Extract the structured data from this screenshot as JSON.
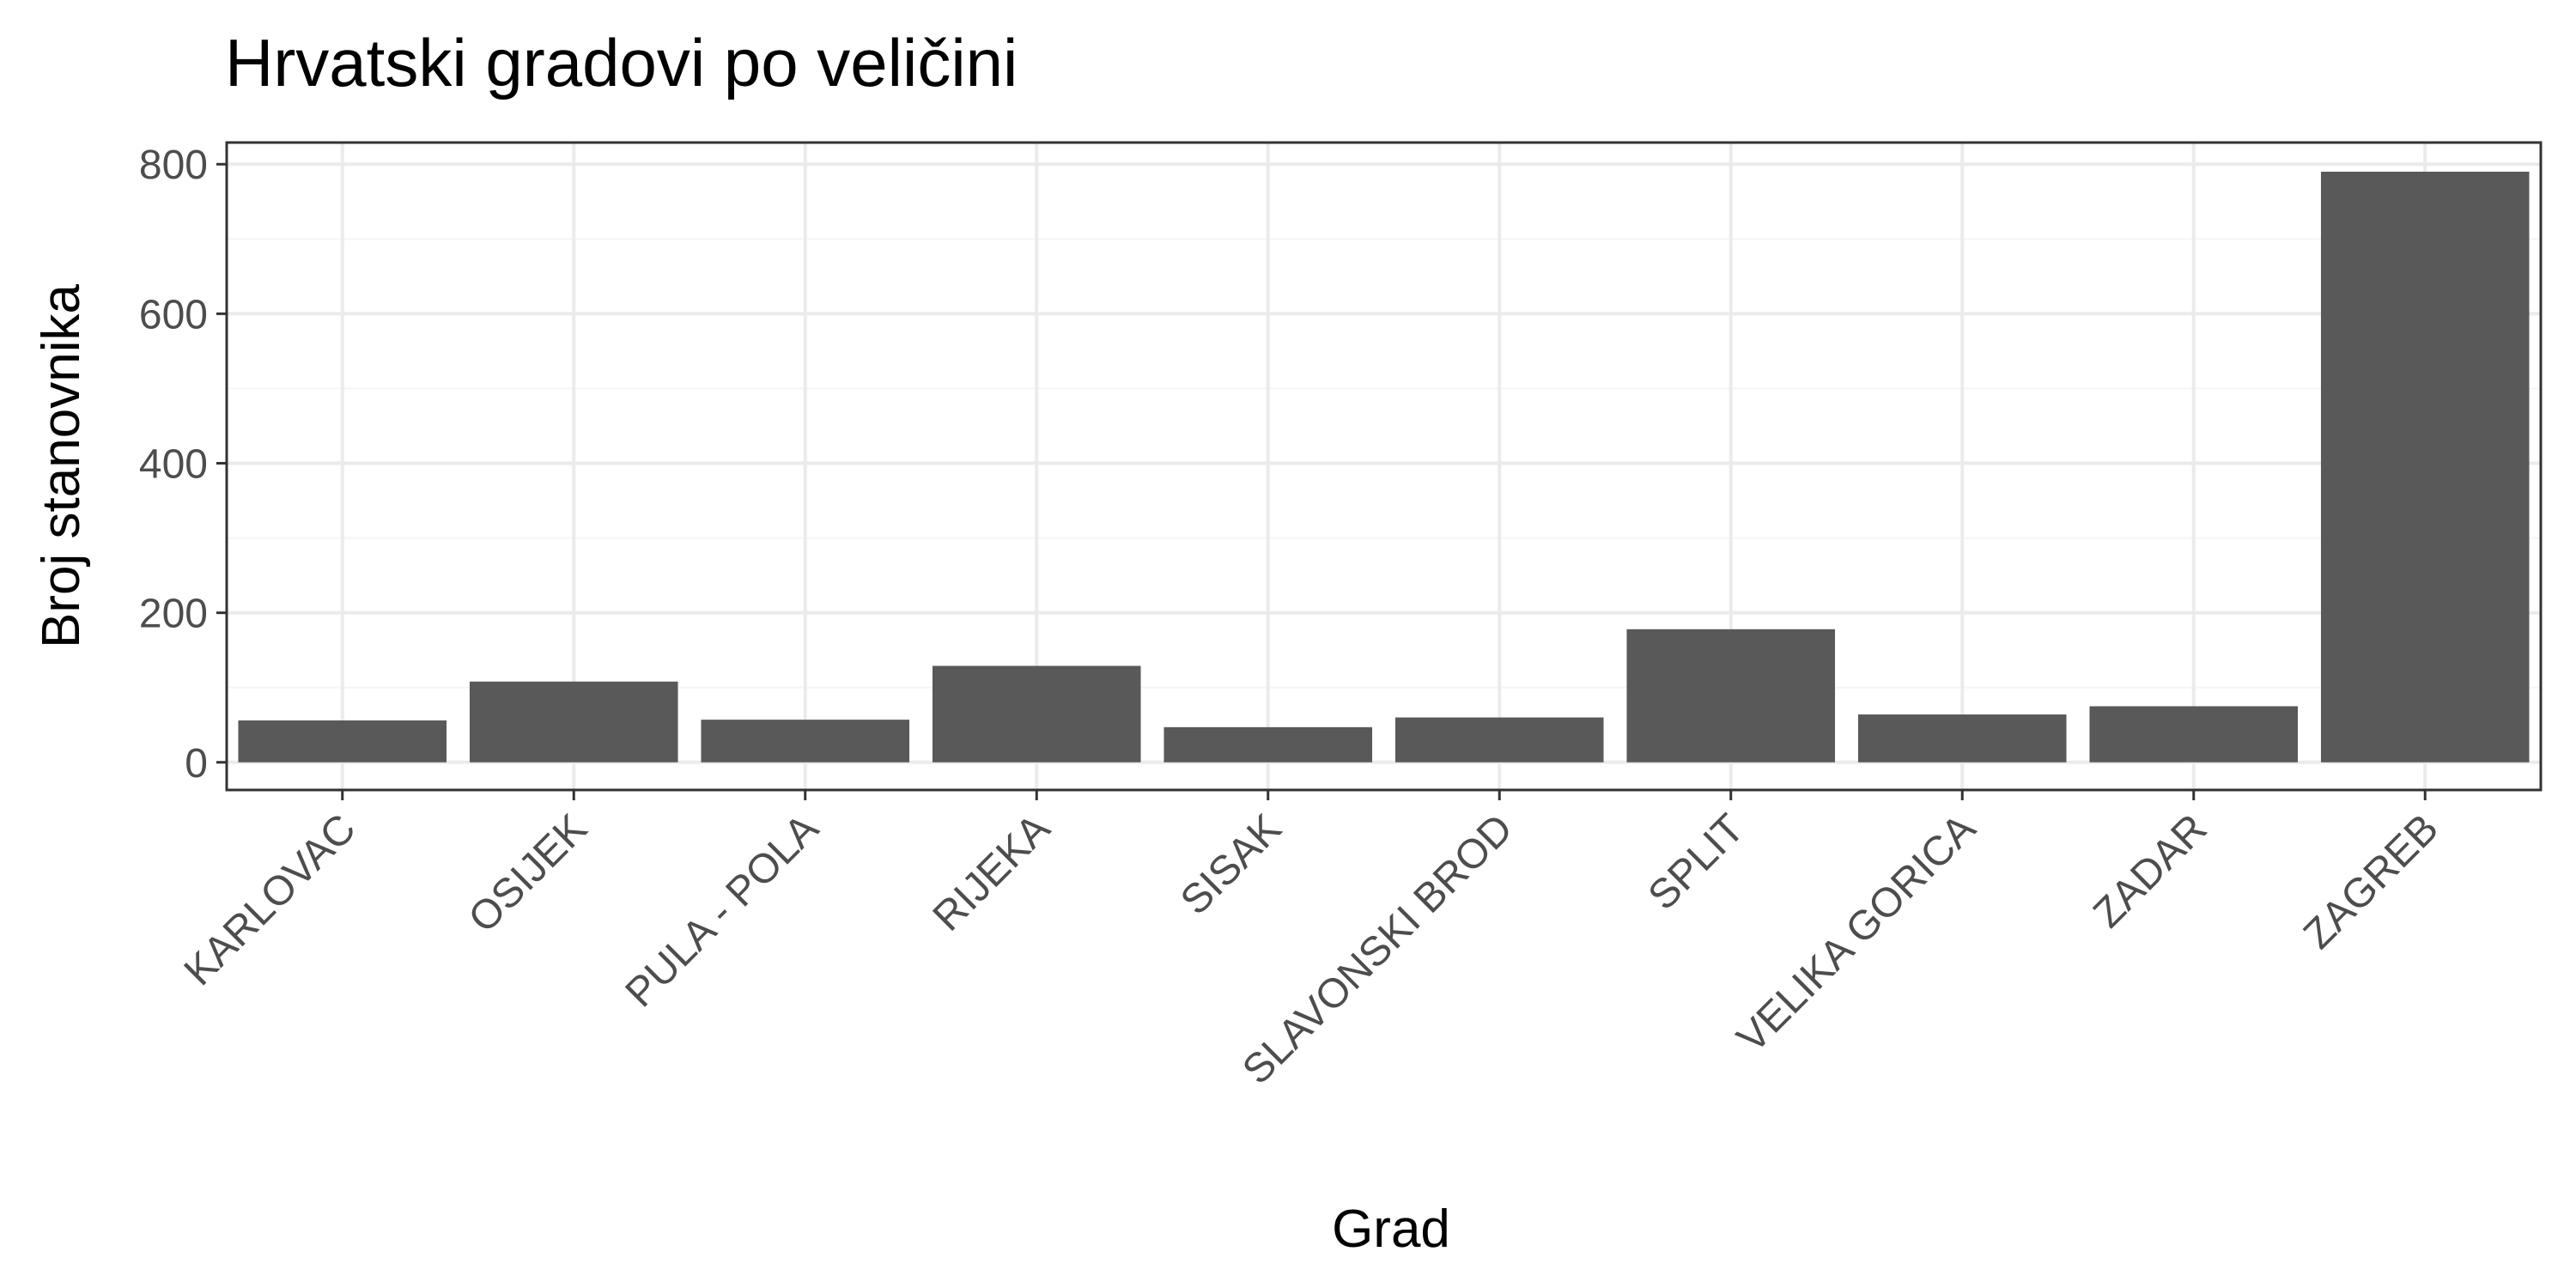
{
  "chart_data": {
    "type": "bar",
    "title": "Hrvatski gradovi po veličini",
    "xlabel": "Grad",
    "ylabel": "Broj stanovnika",
    "categories": [
      "KARLOVAC",
      "OSIJEK",
      "PULA - POLA",
      "RIJEKA",
      "SISAK",
      "SLAVONSKI BROD",
      "SPLIT",
      "VELIKA GORICA",
      "ZADAR",
      "ZAGREB"
    ],
    "values": [
      56,
      108,
      57,
      129,
      47,
      60,
      178,
      64,
      75,
      790
    ],
    "ylim": [
      -37,
      829
    ],
    "yticks": [
      0,
      200,
      400,
      600,
      800
    ],
    "yticks_minor": [
      100,
      300,
      500,
      700
    ],
    "grid": true,
    "legend": "none",
    "colors": {
      "bar": "#595959",
      "grid_major": "#ebebeb",
      "grid_minor": "#f5f5f5",
      "panel_border": "#333333",
      "tick_text": "#4d4d4d"
    }
  }
}
